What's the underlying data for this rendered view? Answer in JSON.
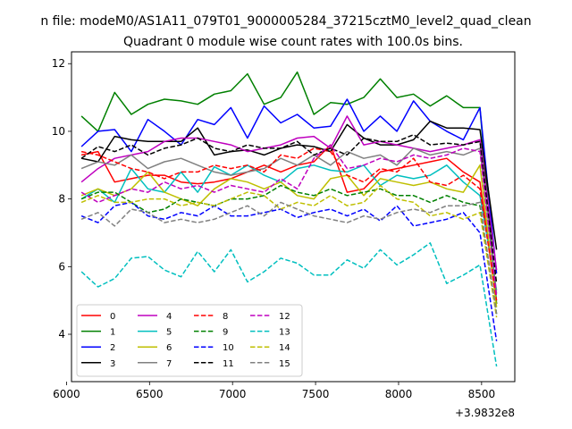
{
  "figure": {
    "suptitle": "n file: modeM0/AS1A11_079T01_9000005284_37215cztM0_level2_quad_clean",
    "offset_label": "+3.9832e8"
  },
  "chart_data": {
    "type": "line",
    "title": "Quadrant 0 module wise count rates with 100.0s bins.",
    "xlabel": "",
    "ylabel": "",
    "xlim": [
      6030,
      8700
    ],
    "ylim": [
      2.6,
      12.35
    ],
    "x_offset": 398320000,
    "xticks": [
      6000,
      6500,
      7000,
      7500,
      8000,
      8500
    ],
    "xtick_labels": [
      "6000",
      "6500",
      "7000",
      "7500",
      "8000",
      "8500"
    ],
    "yticks": [
      4,
      6,
      8,
      10,
      12
    ],
    "ytick_labels": [
      "4",
      "6",
      "8",
      "10",
      "12"
    ],
    "grid": false,
    "legend_placement": "lower-left",
    "legend_columns": 4,
    "x": [
      6090,
      6190,
      6290,
      6390,
      6490,
      6590,
      6690,
      6790,
      6890,
      6990,
      7090,
      7190,
      7290,
      7390,
      7490,
      7590,
      7690,
      7790,
      7890,
      7990,
      8090,
      8190,
      8290,
      8390,
      8490,
      8590
    ],
    "series": [
      {
        "name": "0",
        "color": "#ff0000",
        "dash": "solid",
        "values": [
          9.3,
          9.4,
          8.5,
          8.6,
          8.7,
          8.7,
          8.5,
          8.45,
          8.5,
          8.6,
          8.8,
          9.0,
          8.8,
          9.0,
          9.1,
          9.6,
          8.2,
          8.3,
          8.8,
          8.9,
          9.0,
          9.1,
          9.2,
          8.8,
          8.5,
          4.9
        ]
      },
      {
        "name": "1",
        "color": "#008000",
        "dash": "solid",
        "values": [
          10.45,
          10.0,
          11.15,
          10.5,
          10.8,
          10.95,
          10.9,
          10.8,
          11.1,
          11.2,
          11.7,
          10.8,
          11.0,
          11.75,
          10.5,
          10.85,
          10.8,
          11.0,
          11.55,
          11.0,
          11.1,
          10.75,
          11.05,
          10.7,
          10.7,
          4.9
        ]
      },
      {
        "name": "2",
        "color": "#0000ff",
        "dash": "solid",
        "values": [
          9.55,
          10.0,
          10.05,
          9.4,
          10.35,
          10.0,
          9.6,
          10.35,
          10.2,
          10.7,
          9.8,
          10.75,
          10.25,
          10.5,
          10.1,
          10.15,
          10.95,
          10.0,
          10.45,
          10.0,
          10.9,
          10.3,
          10.0,
          9.75,
          10.7,
          5.8
        ]
      },
      {
        "name": "3",
        "color": "#000000",
        "dash": "solid",
        "values": [
          9.2,
          9.1,
          9.85,
          9.75,
          9.7,
          9.7,
          9.7,
          10.1,
          9.3,
          9.4,
          9.45,
          9.3,
          9.5,
          9.6,
          9.55,
          9.4,
          10.2,
          9.8,
          9.6,
          9.6,
          9.75,
          10.3,
          10.1,
          10.1,
          10.05,
          6.5
        ]
      },
      {
        "name": "4",
        "color": "#bf00bf",
        "dash": "solid",
        "values": [
          8.5,
          8.9,
          9.2,
          9.3,
          9.4,
          9.7,
          9.8,
          9.8,
          9.7,
          9.6,
          9.4,
          9.5,
          9.6,
          9.8,
          9.85,
          9.5,
          10.45,
          9.6,
          9.7,
          9.6,
          9.5,
          9.4,
          9.5,
          9.6,
          9.75,
          5.9
        ]
      },
      {
        "name": "5",
        "color": "#00bfbf",
        "dash": "solid",
        "values": [
          8.0,
          8.3,
          7.9,
          8.9,
          8.3,
          8.2,
          8.8,
          8.2,
          8.95,
          8.7,
          9.0,
          8.7,
          8.5,
          8.9,
          9.0,
          8.85,
          8.8,
          9.0,
          8.4,
          8.7,
          8.6,
          8.7,
          9.0,
          8.5,
          8.1,
          5.3
        ]
      },
      {
        "name": "6",
        "color": "#bfbf00",
        "dash": "solid",
        "values": [
          8.1,
          8.3,
          8.1,
          8.3,
          8.8,
          8.2,
          8.0,
          7.8,
          8.3,
          8.6,
          8.5,
          8.3,
          8.5,
          8.1,
          8.0,
          8.6,
          8.7,
          8.1,
          8.6,
          8.5,
          8.4,
          8.5,
          8.3,
          8.2,
          9.0,
          4.8
        ]
      },
      {
        "name": "7",
        "color": "#808080",
        "dash": "solid",
        "values": [
          8.9,
          9.1,
          9.0,
          9.3,
          8.9,
          9.1,
          9.2,
          9.0,
          8.8,
          8.7,
          8.8,
          8.9,
          9.2,
          9.0,
          9.3,
          9.0,
          9.4,
          9.2,
          9.3,
          9.0,
          9.5,
          9.3,
          9.4,
          9.3,
          9.5,
          5.2
        ]
      },
      {
        "name": "8",
        "color": "#ff0000",
        "dash": "dashed",
        "values": [
          9.4,
          9.3,
          9.1,
          8.9,
          8.8,
          8.6,
          8.8,
          8.8,
          9.0,
          8.9,
          9.0,
          8.8,
          9.3,
          9.2,
          9.5,
          9.4,
          8.7,
          8.5,
          8.9,
          8.8,
          9.2,
          8.5,
          8.4,
          8.7,
          8.3,
          5.0
        ]
      },
      {
        "name": "9",
        "color": "#008000",
        "dash": "dashed",
        "values": [
          8.0,
          8.2,
          8.2,
          7.9,
          7.6,
          7.7,
          8.0,
          7.9,
          7.8,
          8.0,
          8.0,
          8.1,
          8.4,
          8.2,
          8.1,
          8.3,
          8.1,
          8.2,
          8.3,
          8.1,
          8.1,
          7.9,
          8.1,
          7.9,
          7.8,
          4.6
        ]
      },
      {
        "name": "10",
        "color": "#0000ff",
        "dash": "dashed",
        "values": [
          7.5,
          7.3,
          7.8,
          7.9,
          7.5,
          7.4,
          7.6,
          7.5,
          7.8,
          7.5,
          7.5,
          7.6,
          7.7,
          7.45,
          7.6,
          7.7,
          7.5,
          7.7,
          7.35,
          7.8,
          7.2,
          7.3,
          7.4,
          7.6,
          7.0,
          3.8
        ]
      },
      {
        "name": "11",
        "color": "#000000",
        "dash": "dashed",
        "values": [
          9.2,
          9.55,
          9.4,
          9.6,
          9.3,
          9.5,
          9.6,
          9.8,
          9.5,
          9.4,
          9.6,
          9.5,
          9.5,
          9.7,
          9.3,
          9.5,
          9.3,
          9.8,
          9.7,
          9.7,
          9.9,
          9.6,
          9.65,
          9.6,
          9.7,
          5.5
        ]
      },
      {
        "name": "12",
        "color": "#bf00bf",
        "dash": "dashed",
        "values": [
          8.2,
          7.9,
          8.1,
          8.3,
          8.2,
          8.5,
          8.3,
          8.4,
          8.2,
          8.4,
          8.3,
          8.2,
          8.6,
          8.3,
          9.2,
          9.6,
          8.9,
          9.0,
          9.2,
          9.1,
          9.3,
          9.2,
          9.3,
          9.5,
          9.4,
          5.1
        ]
      },
      {
        "name": "13",
        "color": "#00bfbf",
        "dash": "dashed",
        "values": [
          5.85,
          5.4,
          5.65,
          6.25,
          6.3,
          5.9,
          5.7,
          6.45,
          5.85,
          6.5,
          5.55,
          5.85,
          6.25,
          6.1,
          5.75,
          5.75,
          6.2,
          5.95,
          6.5,
          6.05,
          6.35,
          6.7,
          5.5,
          5.75,
          6.05,
          3.05
        ]
      },
      {
        "name": "14",
        "color": "#bfbf00",
        "dash": "dashed",
        "values": [
          7.9,
          8.1,
          7.9,
          7.9,
          8.0,
          8.0,
          7.8,
          7.9,
          7.8,
          8.0,
          8.2,
          8.1,
          7.7,
          7.9,
          7.8,
          8.1,
          7.8,
          7.9,
          8.4,
          8.0,
          7.9,
          7.5,
          7.6,
          7.4,
          7.6,
          4.5
        ]
      },
      {
        "name": "15",
        "color": "#808080",
        "dash": "dashed",
        "values": [
          7.4,
          7.6,
          7.2,
          7.7,
          7.6,
          7.3,
          7.4,
          7.3,
          7.4,
          7.6,
          7.8,
          7.5,
          7.9,
          7.7,
          7.5,
          7.4,
          7.3,
          7.5,
          7.4,
          7.6,
          7.7,
          7.6,
          7.8,
          7.8,
          7.9,
          4.6
        ]
      }
    ]
  }
}
